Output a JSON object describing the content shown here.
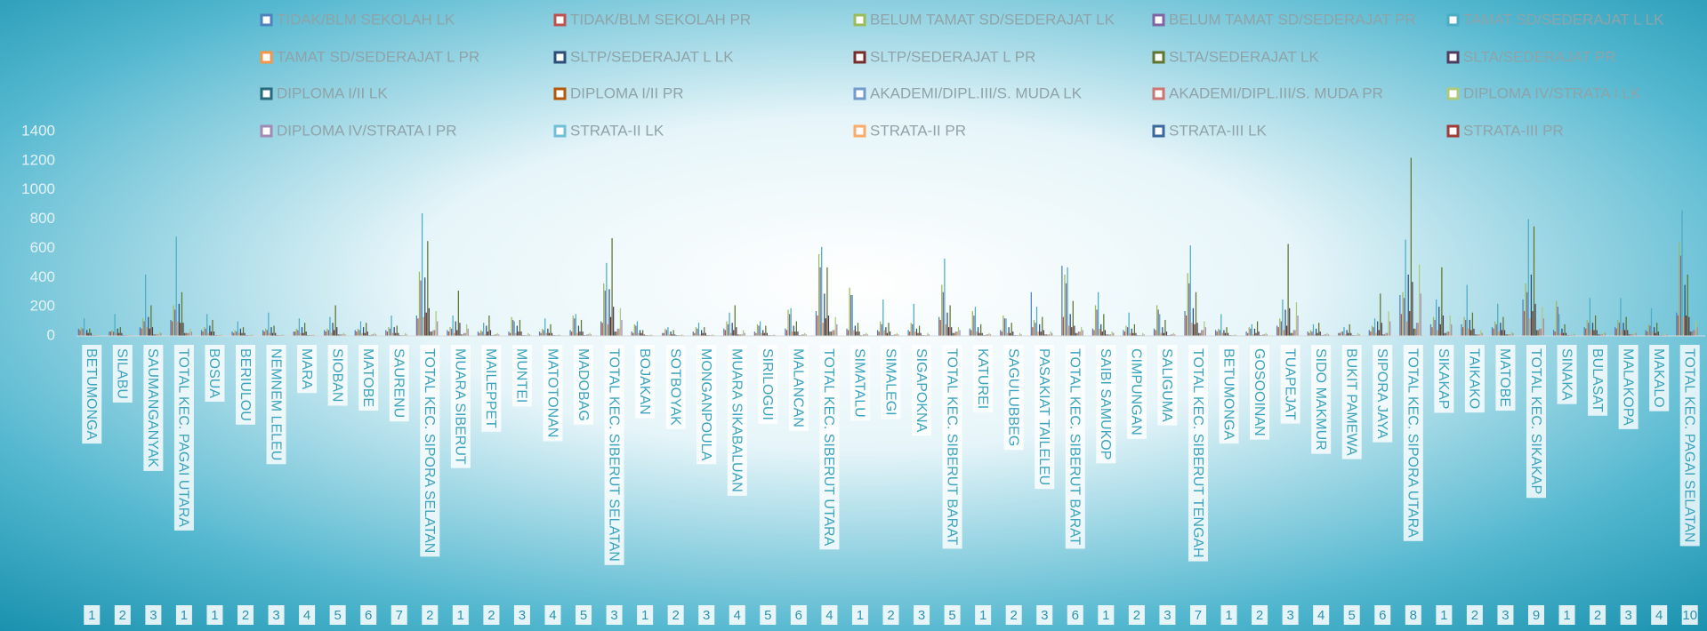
{
  "chart_data": {
    "type": "bar",
    "categories": [
      "BETUMONGA",
      "SILABU",
      "SAUMANGANYAK",
      "TOTAL KEC. PAGAI UTARA",
      "BOSUA",
      "BERIULOU",
      "NEMNEM LELEU",
      "MARA",
      "SIOBAN",
      "MATOBE",
      "SAURENU",
      "TOTAL KEC. SIPORA SELATAN",
      "MUARA SIBERUT",
      "MAILEPPET",
      "MUNTEI",
      "MATOTONAN",
      "MADOBAG",
      "TOTAL KEC. SIBERUT SELATAN",
      "BOJAKAN",
      "SOTBOYAK",
      "MONGANPOULA",
      "MUARA SIKABALUAN",
      "SIRILOGUI",
      "MALANCAN",
      "TOTAL KEC. SIBERUT UTARA",
      "SIMATALU",
      "SIMALEGI",
      "SIGAPOKNA",
      "TOTAL KEC. SIBERUT BARAT",
      "KATUREI",
      "SAGULUBBEG",
      "PASAKIAT TAILELEU",
      "TOTAL KEC. SIBERUT BARAT",
      "SAIBI SAMUKOP",
      "CIMPUNGAN",
      "SALIGUMA",
      "TOTAL KEC. SIBERUT TENGAH",
      "BETUMONGA",
      "GOSOOINAN",
      "TUAPEJAT",
      "SIDO MAKMUR",
      "BUKIT PAMEWA",
      "SIPORA JAYA",
      "TOTAL KEC. SIPORA UTARA",
      "SIKAKAP",
      "TAIKAKO",
      "MATOBE",
      "TOTAL KEC. SIKAKAP",
      "SINAKA",
      "BULASAT",
      "MALAKOPA",
      "MAKALO",
      "TOTAL KEC. PAGAI SELATAN"
    ],
    "group_labels": [
      1,
      2,
      3,
      1,
      1,
      2,
      3,
      4,
      5,
      6,
      7,
      2,
      1,
      2,
      3,
      4,
      5,
      3,
      1,
      2,
      3,
      4,
      5,
      6,
      4,
      1,
      2,
      3,
      5,
      1,
      2,
      3,
      6,
      1,
      2,
      3,
      7,
      1,
      2,
      3,
      4,
      5,
      6,
      8,
      1,
      2,
      3,
      9,
      1,
      2,
      3,
      4,
      10
    ],
    "ylim": [
      0,
      1400
    ],
    "yticks": [
      0,
      200,
      400,
      600,
      800,
      1000,
      1200,
      1400
    ],
    "legend": "top",
    "series": [
      {
        "name": "TIDAK/BLM SEKOLAH  LK",
        "color": "#4f81bd",
        "values": [
          50,
          30,
          60,
          110,
          40,
          30,
          40,
          30,
          40,
          40,
          40,
          140,
          40,
          30,
          30,
          30,
          40,
          100,
          30,
          20,
          30,
          50,
          30,
          50,
          170,
          50,
          40,
          40,
          130,
          50,
          40,
          300,
          480,
          50,
          40,
          50,
          170,
          40,
          30,
          70,
          30,
          20,
          40,
          280,
          80,
          80,
          60,
          250,
          40,
          60,
          60,
          40,
          160
        ]
      },
      {
        "name": "TIDAK/BLM SEKOLAH  PR",
        "color": "#c0504d",
        "values": [
          40,
          30,
          50,
          100,
          30,
          20,
          30,
          30,
          30,
          30,
          30,
          120,
          30,
          20,
          20,
          20,
          30,
          90,
          20,
          20,
          20,
          40,
          20,
          40,
          140,
          40,
          30,
          30,
          110,
          40,
          30,
          60,
          130,
          40,
          30,
          40,
          140,
          30,
          20,
          60,
          20,
          20,
          30,
          150,
          60,
          60,
          50,
          170,
          30,
          50,
          50,
          30,
          140
        ]
      },
      {
        "name": "BELUM TAMAT SD/SEDERAJAT  LK",
        "color": "#9bbb59",
        "values": [
          60,
          40,
          120,
          210,
          60,
          40,
          50,
          50,
          50,
          50,
          60,
          440,
          60,
          40,
          130,
          50,
          140,
          360,
          80,
          50,
          60,
          100,
          80,
          180,
          560,
          330,
          100,
          90,
          350,
          170,
          140,
          110,
          420,
          210,
          70,
          210,
          430,
          50,
          60,
          120,
          40,
          30,
          70,
          300,
          130,
          130,
          100,
          360,
          240,
          110,
          110,
          80,
          640
        ]
      },
      {
        "name": "BELUM TAMAT SD/SEDERAJAT  PR",
        "color": "#8064a2",
        "values": [
          50,
          30,
          100,
          180,
          50,
          30,
          40,
          40,
          40,
          40,
          50,
          380,
          50,
          30,
          110,
          40,
          120,
          310,
          70,
          40,
          50,
          80,
          70,
          150,
          470,
          280,
          80,
          80,
          300,
          140,
          120,
          90,
          360,
          180,
          60,
          180,
          360,
          40,
          50,
          100,
          30,
          30,
          60,
          260,
          110,
          110,
          80,
          300,
          200,
          90,
          90,
          70,
          550
        ]
      },
      {
        "name": "TAMAT SD/SEDERAJAT L LK",
        "color": "#4bacc6",
        "values": [
          120,
          150,
          420,
          680,
          150,
          100,
          160,
          120,
          130,
          100,
          140,
          840,
          140,
          90,
          100,
          120,
          150,
          500,
          100,
          60,
          90,
          160,
          100,
          190,
          610,
          280,
          250,
          220,
          530,
          200,
          120,
          200,
          470,
          300,
          160,
          150,
          620,
          150,
          80,
          250,
          80,
          60,
          120,
          660,
          250,
          350,
          220,
          800,
          150,
          260,
          260,
          190,
          860
        ]
      },
      {
        "name": "TAMAT SD/SEDERAJAT L PR",
        "color": "#f79646",
        "values": [
          20,
          20,
          60,
          100,
          20,
          20,
          20,
          20,
          20,
          20,
          20,
          130,
          20,
          10,
          20,
          20,
          20,
          80,
          20,
          10,
          10,
          20,
          20,
          30,
          90,
          40,
          40,
          30,
          80,
          30,
          20,
          30,
          70,
          50,
          20,
          20,
          90,
          20,
          10,
          40,
          10,
          10,
          20,
          100,
          40,
          50,
          30,
          120,
          20,
          40,
          40,
          30,
          130
        ]
      },
      {
        "name": "SLTP/SEDERAJAT L LK",
        "color": "#2c4d75",
        "values": [
          40,
          50,
          130,
          220,
          70,
          50,
          60,
          60,
          90,
          60,
          60,
          400,
          100,
          70,
          70,
          50,
          70,
          320,
          40,
          30,
          40,
          90,
          40,
          70,
          290,
          70,
          60,
          50,
          160,
          60,
          60,
          80,
          150,
          80,
          50,
          60,
          190,
          40,
          50,
          180,
          50,
          40,
          100,
          420,
          200,
          110,
          90,
          420,
          50,
          90,
          90,
          60,
          350
        ]
      },
      {
        "name": "SLTP/SEDERAJAT L PR",
        "color": "#772c2a",
        "values": [
          20,
          20,
          50,
          90,
          30,
          20,
          20,
          20,
          40,
          20,
          20,
          160,
          40,
          30,
          30,
          20,
          30,
          130,
          20,
          10,
          20,
          40,
          20,
          30,
          120,
          30,
          20,
          20,
          60,
          20,
          20,
          30,
          60,
          30,
          20,
          20,
          80,
          20,
          20,
          70,
          20,
          20,
          40,
          170,
          80,
          40,
          40,
          170,
          20,
          40,
          40,
          20,
          140
        ]
      },
      {
        "name": "SLTA/SEDERAJAT  LK",
        "color": "#5f7530",
        "values": [
          50,
          60,
          210,
          300,
          110,
          60,
          70,
          90,
          210,
          90,
          70,
          650,
          310,
          140,
          110,
          80,
          110,
          670,
          40,
          40,
          60,
          210,
          70,
          100,
          470,
          90,
          90,
          70,
          210,
          80,
          90,
          130,
          240,
          150,
          80,
          110,
          300,
          60,
          100,
          630,
          90,
          80,
          290,
          1220,
          470,
          160,
          130,
          750,
          80,
          140,
          130,
          90,
          420
        ]
      },
      {
        "name": "SLTA/SEDERAJAT  PR",
        "color": "#4d3b62",
        "values": [
          20,
          20,
          60,
          90,
          30,
          20,
          20,
          30,
          60,
          30,
          20,
          190,
          90,
          40,
          30,
          20,
          30,
          200,
          10,
          10,
          20,
          60,
          20,
          30,
          140,
          30,
          30,
          20,
          60,
          20,
          30,
          40,
          70,
          40,
          20,
          30,
          90,
          20,
          30,
          190,
          30,
          20,
          90,
          370,
          140,
          50,
          40,
          220,
          20,
          40,
          40,
          30,
          130
        ]
      },
      {
        "name": "DIPLOMA I/II  LK",
        "color": "#276a7c",
        "values": [
          5,
          5,
          10,
          20,
          5,
          5,
          5,
          5,
          10,
          5,
          5,
          30,
          10,
          5,
          5,
          5,
          5,
          30,
          5,
          5,
          5,
          10,
          5,
          5,
          30,
          5,
          5,
          5,
          20,
          5,
          5,
          10,
          20,
          10,
          5,
          5,
          20,
          5,
          5,
          20,
          5,
          5,
          10,
          50,
          20,
          10,
          10,
          40,
          5,
          10,
          10,
          5,
          30
        ]
      },
      {
        "name": "DIPLOMA I/II  PR",
        "color": "#b65708",
        "values": [
          5,
          5,
          10,
          20,
          5,
          5,
          5,
          5,
          10,
          5,
          5,
          30,
          10,
          5,
          5,
          5,
          5,
          30,
          5,
          5,
          5,
          10,
          5,
          5,
          30,
          5,
          5,
          5,
          20,
          5,
          5,
          10,
          20,
          10,
          5,
          5,
          20,
          5,
          5,
          20,
          5,
          5,
          10,
          50,
          20,
          10,
          10,
          40,
          5,
          10,
          10,
          5,
          30
        ]
      },
      {
        "name": "AKADEMI/DIPL.III/S. MUDA  LK",
        "color": "#729aca",
        "values": [
          5,
          5,
          10,
          20,
          5,
          5,
          5,
          5,
          10,
          10,
          5,
          40,
          20,
          10,
          5,
          5,
          10,
          50,
          5,
          5,
          5,
          10,
          5,
          10,
          40,
          10,
          10,
          5,
          30,
          10,
          5,
          10,
          30,
          10,
          5,
          10,
          40,
          5,
          10,
          40,
          10,
          5,
          20,
          90,
          30,
          10,
          10,
          50,
          5,
          10,
          10,
          5,
          40
        ]
      },
      {
        "name": "AKADEMI/DIPL.III/S. MUDA  PR",
        "color": "#cd7371",
        "values": [
          5,
          5,
          10,
          20,
          5,
          5,
          5,
          5,
          10,
          10,
          5,
          40,
          20,
          10,
          5,
          5,
          10,
          50,
          5,
          5,
          5,
          10,
          5,
          10,
          40,
          10,
          10,
          5,
          30,
          10,
          5,
          10,
          30,
          10,
          5,
          10,
          40,
          5,
          10,
          40,
          10,
          5,
          20,
          90,
          30,
          10,
          10,
          50,
          5,
          10,
          10,
          5,
          40
        ]
      },
      {
        "name": "DIPLOMA IV/STRATA I  LK",
        "color": "#afc97a",
        "values": [
          10,
          10,
          30,
          50,
          10,
          10,
          10,
          10,
          20,
          20,
          20,
          170,
          80,
          20,
          20,
          10,
          20,
          190,
          10,
          10,
          10,
          40,
          10,
          20,
          130,
          20,
          20,
          20,
          60,
          20,
          20,
          30,
          60,
          30,
          20,
          20,
          100,
          10,
          20,
          230,
          20,
          20,
          170,
          490,
          140,
          40,
          30,
          200,
          20,
          30,
          30,
          20,
          100
        ]
      },
      {
        "name": "DIPLOMA IV/STRATA I  PR",
        "color": "#a28ab5",
        "values": [
          5,
          5,
          20,
          30,
          5,
          5,
          5,
          5,
          10,
          10,
          10,
          100,
          50,
          10,
          10,
          5,
          10,
          110,
          5,
          5,
          5,
          20,
          5,
          10,
          80,
          10,
          10,
          10,
          40,
          10,
          10,
          20,
          40,
          20,
          10,
          10,
          60,
          5,
          10,
          140,
          10,
          10,
          100,
          290,
          80,
          20,
          20,
          120,
          10,
          20,
          20,
          10,
          60
        ]
      },
      {
        "name": "STRATA-II  LK",
        "color": "#6fc0d6",
        "values": [
          0,
          0,
          0,
          2,
          0,
          0,
          0,
          0,
          0,
          0,
          0,
          3,
          1,
          0,
          0,
          0,
          0,
          4,
          0,
          0,
          0,
          0,
          0,
          0,
          2,
          0,
          0,
          0,
          1,
          0,
          0,
          0,
          1,
          0,
          0,
          0,
          1,
          0,
          0,
          3,
          0,
          0,
          1,
          6,
          2,
          0,
          0,
          3,
          0,
          0,
          0,
          0,
          2
        ]
      },
      {
        "name": "STRATA-II  PR",
        "color": "#f9ab6b",
        "values": [
          0,
          0,
          0,
          1,
          0,
          0,
          0,
          0,
          0,
          0,
          0,
          1,
          0,
          0,
          0,
          0,
          0,
          2,
          0,
          0,
          0,
          0,
          0,
          0,
          1,
          0,
          0,
          0,
          0,
          0,
          0,
          0,
          0,
          0,
          0,
          0,
          0,
          0,
          0,
          1,
          0,
          0,
          0,
          2,
          1,
          0,
          0,
          1,
          0,
          0,
          0,
          0,
          1
        ]
      },
      {
        "name": "STRATA-III  LK",
        "color": "#3a679c",
        "values": [
          0,
          0,
          0,
          0,
          0,
          0,
          0,
          0,
          0,
          0,
          0,
          0,
          0,
          0,
          0,
          0,
          0,
          0,
          0,
          0,
          0,
          0,
          0,
          0,
          0,
          0,
          0,
          0,
          0,
          0,
          0,
          0,
          0,
          0,
          0,
          0,
          0,
          0,
          0,
          0,
          0,
          0,
          0,
          0,
          0,
          0,
          0,
          0,
          0,
          0,
          0,
          0,
          0
        ]
      },
      {
        "name": "STRATA-III  PR",
        "color": "#9f3b38",
        "values": [
          0,
          0,
          0,
          0,
          0,
          0,
          0,
          0,
          0,
          0,
          0,
          0,
          0,
          0,
          0,
          0,
          0,
          0,
          0,
          0,
          0,
          0,
          0,
          0,
          0,
          0,
          0,
          0,
          0,
          0,
          0,
          0,
          0,
          0,
          0,
          0,
          0,
          0,
          0,
          0,
          0,
          0,
          0,
          0,
          0,
          0,
          0,
          0,
          0,
          0,
          0,
          0,
          0
        ]
      }
    ]
  }
}
